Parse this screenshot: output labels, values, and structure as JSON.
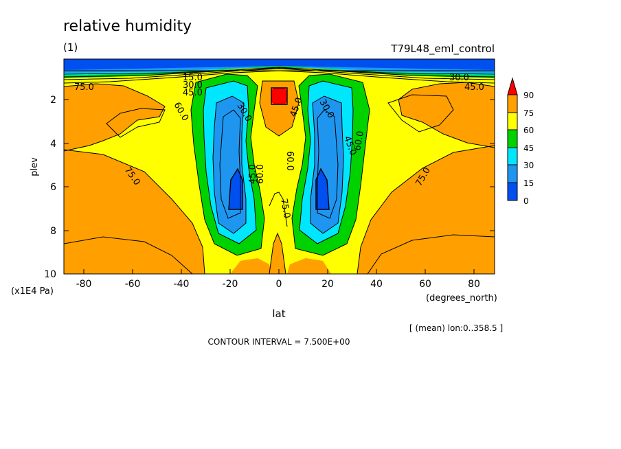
{
  "chart_data": {
    "type": "heatmap",
    "title": "relative humidity",
    "units": "(1)",
    "experiment": "T79L48_eml_control",
    "xlabel": "lat",
    "xunits": "(degrees_north)",
    "ylabel": "plev",
    "yunits": "(x1E4 Pa)",
    "x_ticks": [
      "-80",
      "-60",
      "-40",
      "-20",
      "0",
      "20",
      "40",
      "60",
      "80"
    ],
    "y_ticks": [
      "2",
      "4",
      "6",
      "8",
      "10"
    ],
    "xlim": [
      -88,
      88
    ],
    "ylim": [
      10,
      0.2
    ],
    "color_levels": [
      "0",
      "15",
      "30",
      "45",
      "60",
      "75",
      "90"
    ],
    "colors": [
      "#0050f0",
      "#1e96f0",
      "#00e6ff",
      "#00d200",
      "#ffff00",
      "#ffa000",
      "#ff0000"
    ],
    "contour_labels": [
      "15.0",
      "30.0",
      "45.0",
      "75.0",
      "60.0",
      "30.0",
      "45.0",
      "60.0",
      "75.0",
      "45.0",
      "60.0",
      "30.0",
      "45.0",
      "60.0",
      "75.0",
      "75.0",
      "30.0",
      "45.0",
      "60.0",
      "75.0",
      "60.0",
      "15.0",
      "75.0"
    ],
    "annotation": "[ (mean) lon:0..358.5 ]",
    "contour_interval": "CONTOUR INTERVAL = 7.500E+00"
  }
}
